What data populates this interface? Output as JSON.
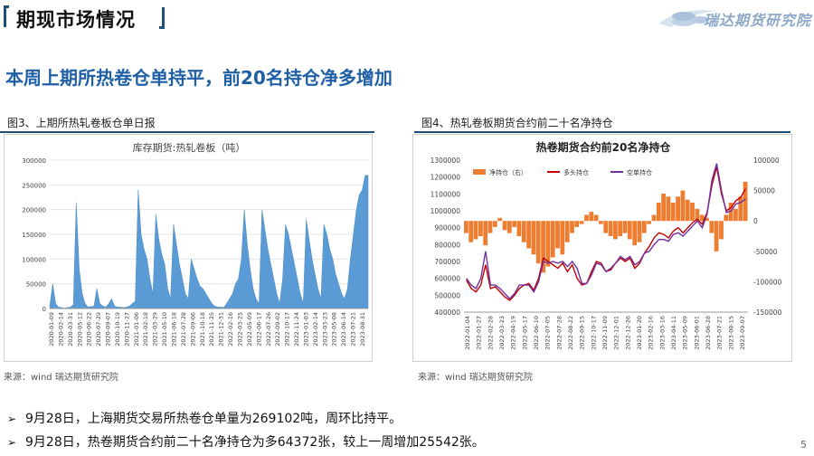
{
  "header": {
    "title": "期现市场情况",
    "logo_text": "瑞达期货研究院"
  },
  "headline": "本周上期所热卷仓单持平，前20名持仓净多增加",
  "figures": {
    "left_label": "图3、上期所热轧卷板仓单日报",
    "right_label": "图4、热轧卷板期货合约前二十名净持仓",
    "left_source": "来源：wind   瑞达期货研究院",
    "right_source": "来源：wind   瑞达期货研究院"
  },
  "bullets": [
    "9月28日，上海期货交易所热卷仓单量为269102吨，周环比持平。",
    "9月28日，热卷期货合约前二十名净持仓为多64372张，较上一周增加25542张。"
  ],
  "page_number": "5",
  "colors": {
    "accent_blue": "#1f5fa6",
    "bar_blue": "#5b9bd5",
    "net_orange": "#ed7d31",
    "long_red": "#c00000",
    "short_purple": "#7030a0"
  },
  "chart_data": [
    {
      "type": "area",
      "title": "库存期货:热轧卷板（吨）",
      "ylim": [
        0,
        300000
      ],
      "yticks": [
        0,
        50000,
        100000,
        150000,
        200000,
        250000,
        300000
      ],
      "xticks": [
        "2020-01-09",
        "2020-02-14",
        "2020-03-31",
        "2020-05-12",
        "2020-06-22",
        "2020-07-29",
        "2020-09-07",
        "2020-10-19",
        "2020-11-27",
        "2021-01-06",
        "2021-02-18",
        "2021-03-29",
        "2021-05-10",
        "2021-06-18",
        "2021-07-28",
        "2021-09-06",
        "2021-10-18",
        "2021-11-25",
        "2021-12-31",
        "2022-02-16",
        "2022-03-25",
        "2022-05-09",
        "2022-06-17",
        "2022-07-26",
        "2022-09-02",
        "2022-10-17",
        "2022-11-24",
        "2023-01-03",
        "2023-02-14",
        "2023-03-23",
        "2023-05-08",
        "2023-06-14",
        "2023-07-21",
        "2023-08-31"
      ],
      "values": [
        5000,
        50000,
        10000,
        3000,
        2000,
        1000,
        2000,
        3000,
        8000,
        215000,
        80000,
        30000,
        10000,
        3000,
        4000,
        5000,
        40000,
        10000,
        5000,
        3000,
        10000,
        20000,
        5000,
        3000,
        3000,
        2000,
        3000,
        5000,
        10000,
        15000,
        240000,
        150000,
        120000,
        100000,
        60000,
        30000,
        190000,
        140000,
        110000,
        90000,
        40000,
        20000,
        170000,
        130000,
        90000,
        60000,
        30000,
        20000,
        100000,
        80000,
        60000,
        45000,
        40000,
        30000,
        20000,
        10000,
        5000,
        3000,
        3000,
        2000,
        10000,
        20000,
        30000,
        50000,
        60000,
        100000,
        200000,
        130000,
        80000,
        40000,
        20000,
        10000,
        200000,
        160000,
        120000,
        90000,
        60000,
        30000,
        10000,
        60000,
        170000,
        150000,
        120000,
        90000,
        60000,
        30000,
        10000,
        180000,
        140000,
        100000,
        70000,
        40000,
        20000,
        170000,
        150000,
        120000,
        100000,
        70000,
        50000,
        30000,
        20000,
        40000,
        100000,
        150000,
        200000,
        230000,
        240000,
        269102,
        269102
      ]
    },
    {
      "type": "line",
      "title": "热卷期货合约前20名净持仓",
      "ylim_left": [
        400000,
        1300000
      ],
      "yticks_left": [
        400000,
        500000,
        600000,
        700000,
        800000,
        900000,
        1000000,
        1100000,
        1200000,
        1300000
      ],
      "ylim_right": [
        -150000,
        100000
      ],
      "yticks_right": [
        -150000,
        -100000,
        -50000,
        0,
        50000,
        100000
      ],
      "xticks": [
        "2022-01-04",
        "2022-01-27",
        "2022-02-28",
        "2022-03-23",
        "2022-04-19",
        "2022-05-17",
        "2022-06-10",
        "2022-07-05",
        "2022-07-28",
        "2022-08-22",
        "2022-09-15",
        "2022-10-17",
        "2022-11-09",
        "2022-12-01",
        "2022-12-26",
        "2023-01-20",
        "2023-02-16",
        "2023-03-16",
        "2023-04-11",
        "2023-05-09",
        "2023-06-01",
        "2023-06-28",
        "2023-07-21",
        "2023-08-15",
        "2023-09-07"
      ],
      "legend": [
        "净持仓（右）",
        "多头持仓",
        "空单持仓"
      ],
      "series": [
        {
          "name": "净持仓（右）",
          "axis": "right",
          "values": [
            -20000,
            -35000,
            -30000,
            -25000,
            -40000,
            -20000,
            -10000,
            5000,
            -15000,
            -20000,
            -10000,
            -25000,
            -35000,
            -45000,
            -55000,
            -70000,
            -85000,
            -75000,
            -60000,
            -45000,
            -55000,
            -35000,
            -20000,
            -10000,
            -5000,
            10000,
            15000,
            10000,
            -5000,
            -20000,
            -25000,
            -30000,
            -25000,
            -20000,
            -30000,
            -40000,
            -35000,
            -20000,
            -5000,
            10000,
            30000,
            45000,
            40000,
            30000,
            40000,
            50000,
            35000,
            30000,
            20000,
            10000,
            5000,
            -20000,
            -50000,
            -30000,
            10000,
            30000,
            20000,
            40000,
            64372
          ]
        },
        {
          "name": "多头持仓",
          "axis": "left",
          "values": [
            590000,
            540000,
            520000,
            560000,
            680000,
            540000,
            550000,
            520000,
            490000,
            470000,
            500000,
            540000,
            560000,
            570000,
            530000,
            600000,
            720000,
            700000,
            680000,
            660000,
            690000,
            640000,
            680000,
            600000,
            560000,
            570000,
            640000,
            700000,
            690000,
            640000,
            650000,
            690000,
            720000,
            700000,
            720000,
            660000,
            690000,
            750000,
            790000,
            840000,
            870000,
            860000,
            840000,
            880000,
            900000,
            870000,
            900000,
            930000,
            950000,
            920000,
            990000,
            1150000,
            1260000,
            1100000,
            1000000,
            1020000,
            1060000,
            1080000,
            1130000
          ]
        },
        {
          "name": "空单持仓",
          "axis": "left",
          "values": [
            600000,
            560000,
            540000,
            600000,
            760000,
            560000,
            560000,
            540000,
            510000,
            480000,
            510000,
            560000,
            560000,
            560000,
            520000,
            580000,
            700000,
            690000,
            700000,
            690000,
            700000,
            670000,
            700000,
            660000,
            570000,
            570000,
            620000,
            690000,
            680000,
            640000,
            660000,
            690000,
            730000,
            710000,
            730000,
            680000,
            700000,
            750000,
            760000,
            800000,
            830000,
            830000,
            820000,
            860000,
            870000,
            850000,
            880000,
            910000,
            940000,
            900000,
            980000,
            1180000,
            1280000,
            1120000,
            990000,
            1000000,
            1040000,
            1050000,
            1070000
          ]
        }
      ]
    }
  ]
}
